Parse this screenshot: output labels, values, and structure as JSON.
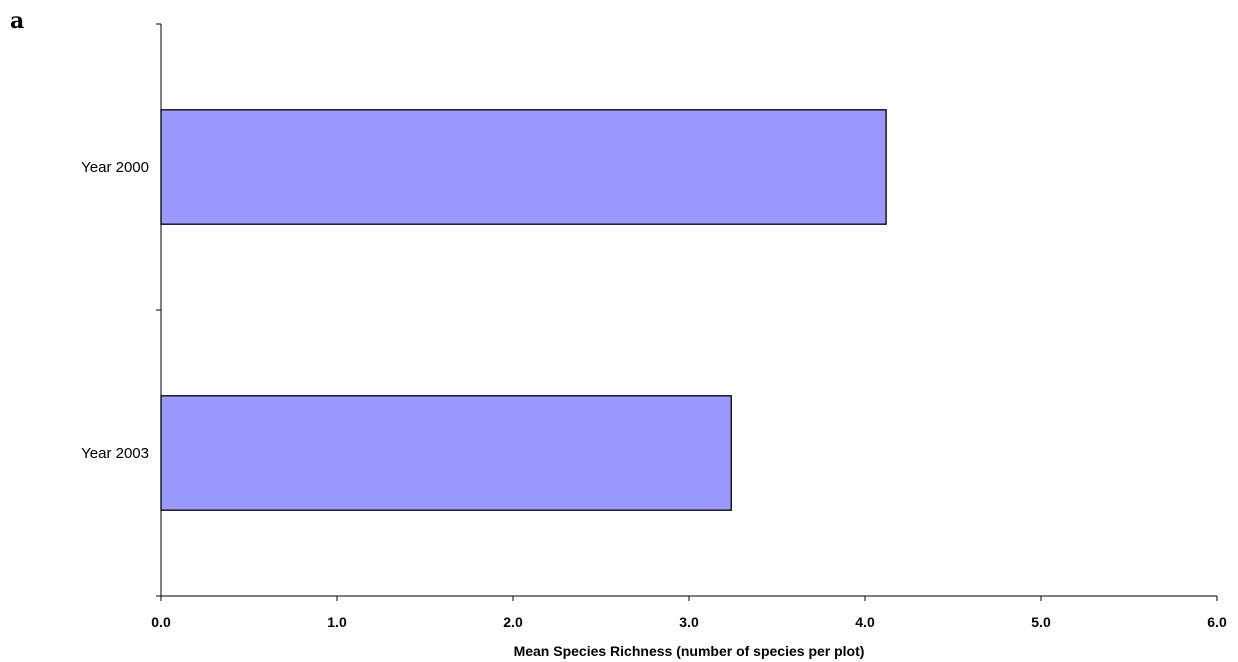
{
  "panel_label": "a",
  "chart_data": {
    "type": "bar",
    "orientation": "horizontal",
    "categories": [
      "Year 2000",
      "Year 2003"
    ],
    "values": [
      4.12,
      3.24
    ],
    "xlabel": "Mean Species Richness (number of species per plot)",
    "ylabel": "",
    "xlim": [
      0,
      6
    ],
    "xticks": [
      "0.0",
      "1.0",
      "2.0",
      "3.0",
      "4.0",
      "5.0",
      "6.0"
    ],
    "grid": false,
    "legend": "none",
    "bar_color": "#9999ff",
    "bar_edge_color": "#000000"
  }
}
